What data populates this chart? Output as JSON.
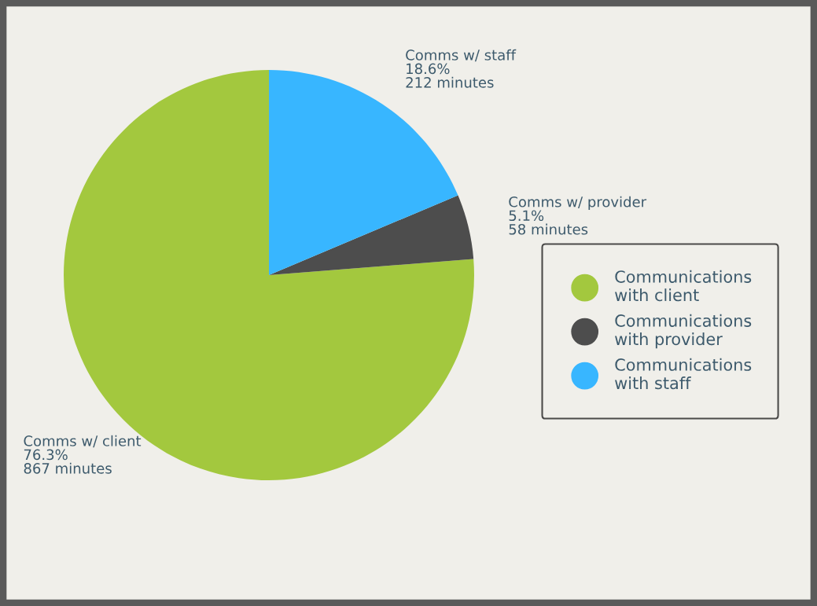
{
  "chart_data": {
    "type": "pie",
    "categories": [
      "Communications with client",
      "Communications with provider",
      "Communications with staff"
    ],
    "values": [
      867,
      58,
      212
    ],
    "colors": [
      "#a3c83e",
      "#4d4d4d",
      "#38b6ff"
    ],
    "value_labels": [
      "Comms w/ client\n76.3%\n867 minutes",
      "Comms w/ provider\n5.1%\n58 minutes",
      "Comms w/ staff\n18.6%\n212 minutes"
    ],
    "legend": "right"
  }
}
